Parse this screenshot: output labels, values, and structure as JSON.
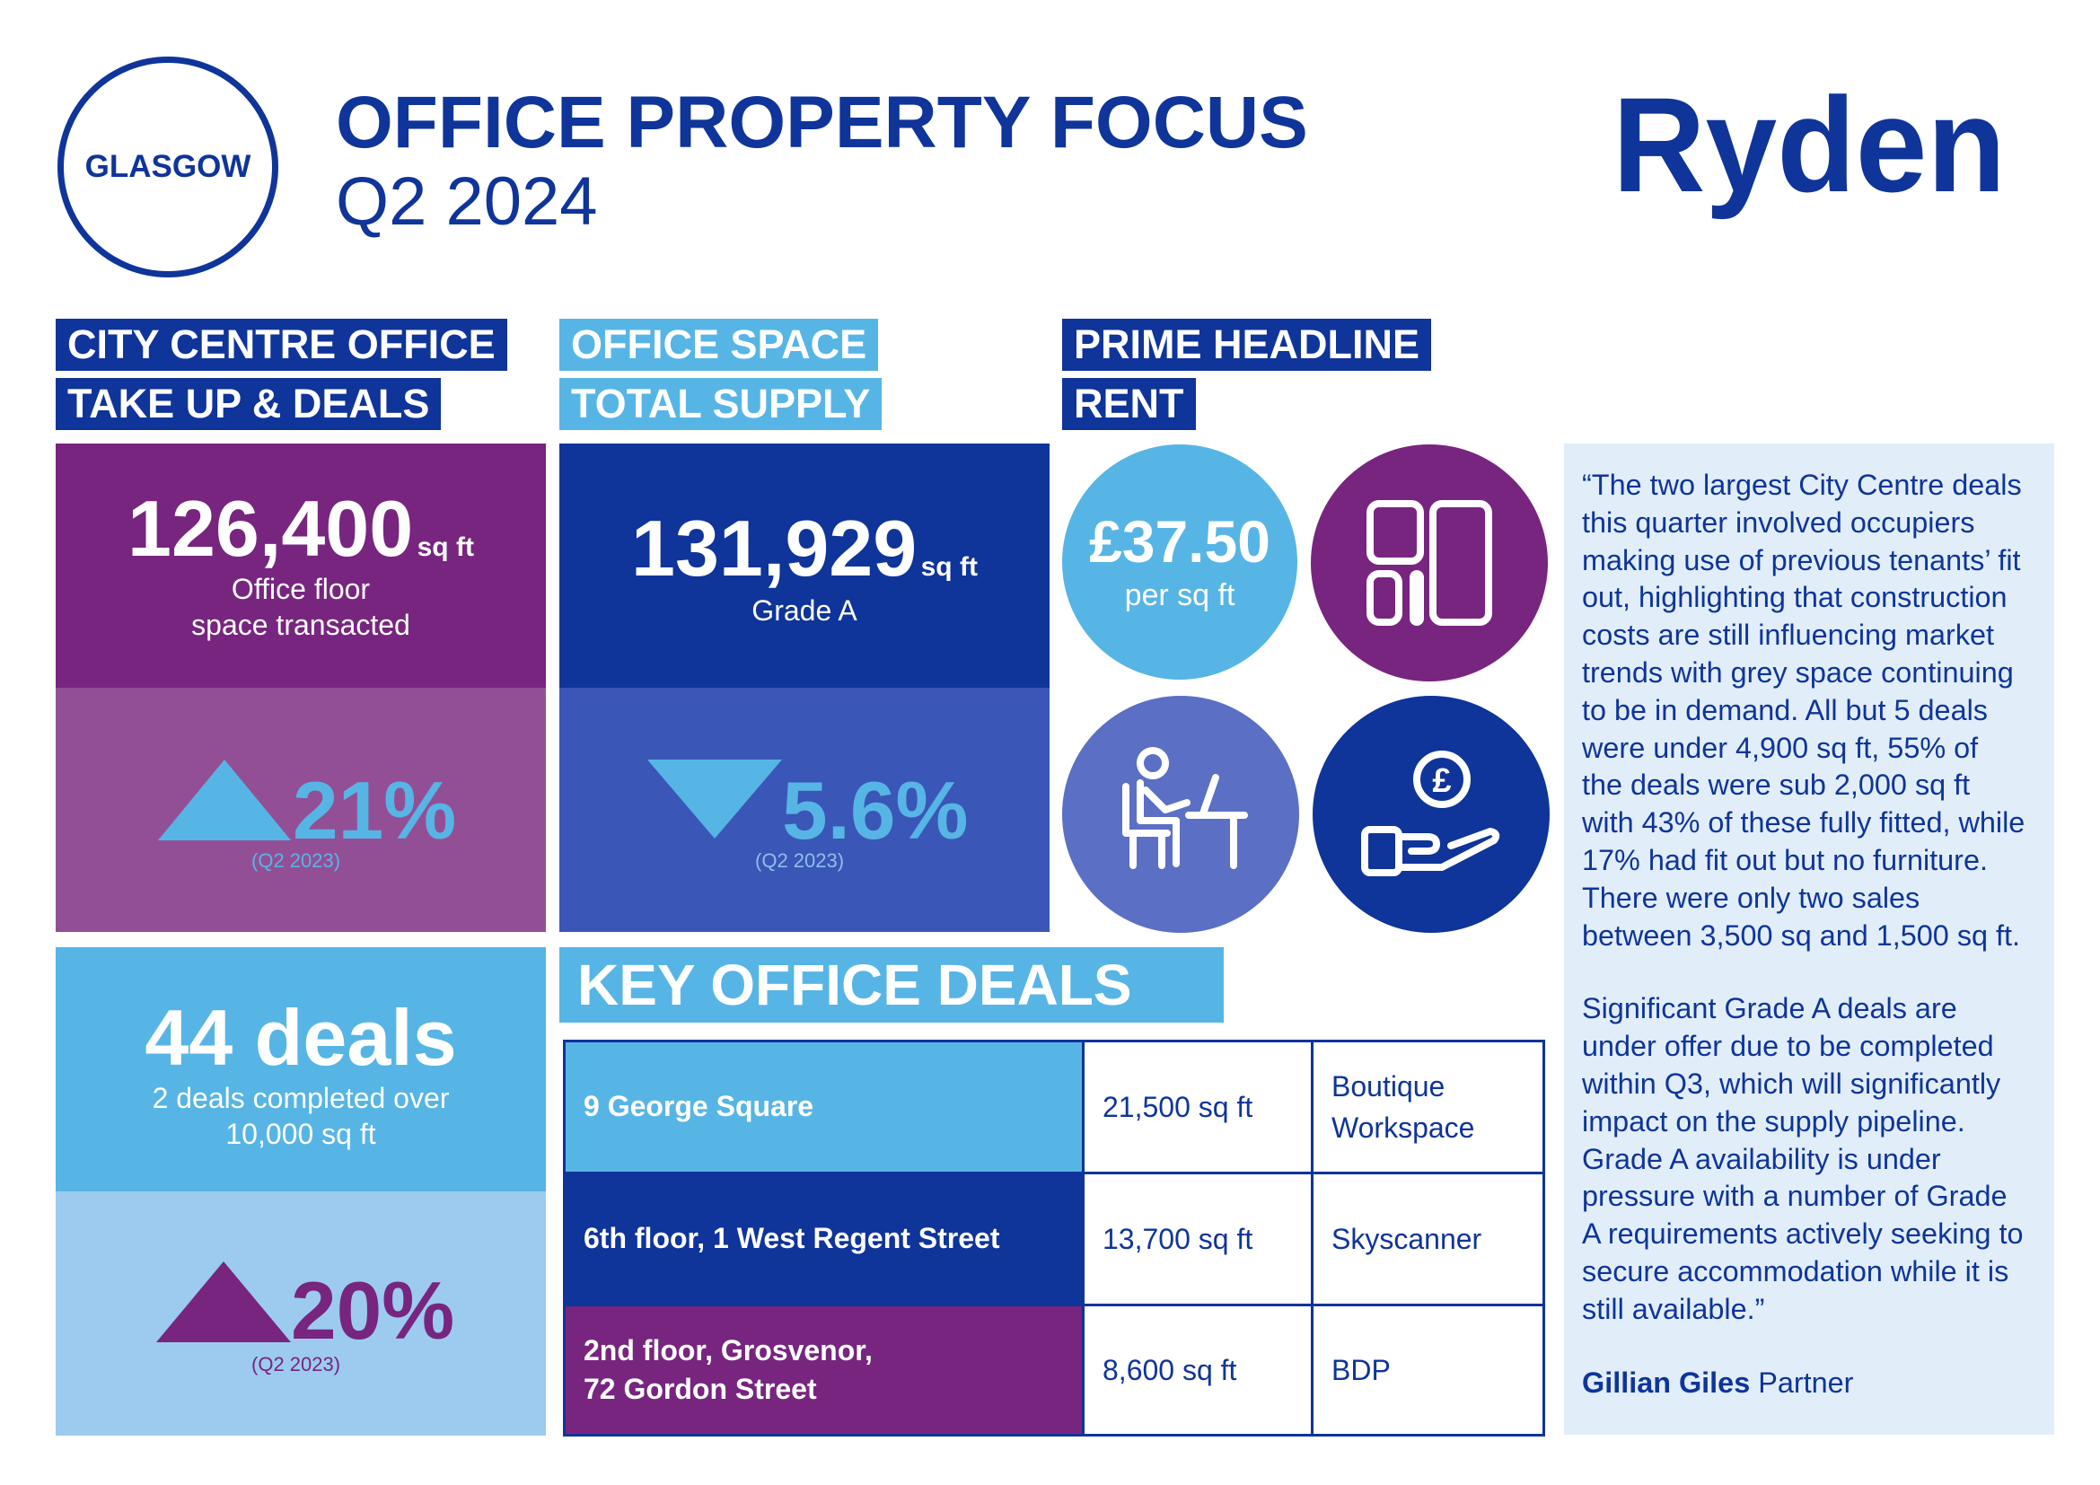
{
  "header": {
    "city": "GLASGOW",
    "title": "OFFICE PROPERTY FOCUS",
    "period": "Q2 2024",
    "brand": "Ryden"
  },
  "sections": {
    "takeup_line1": "CITY CENTRE OFFICE",
    "takeup_line2": "TAKE UP & DEALS",
    "supply_line1": "OFFICE SPACE",
    "supply_line2": "TOTAL SUPPLY",
    "rent_line1": "PRIME HEADLINE",
    "rent_line2": "RENT"
  },
  "takeup": {
    "value": "126,400",
    "unit": "sq ft",
    "caption": "Office floor\nspace transacted",
    "change_direction": "up",
    "change": "21%",
    "compare": "(Q2 2023)"
  },
  "supply": {
    "value": "131,929",
    "unit": "sq ft",
    "caption": "Grade A",
    "change_direction": "down",
    "change": "5.6%",
    "compare": "(Q2 2023)"
  },
  "deals": {
    "value": "44 deals",
    "caption": "2 deals completed over\n10,000 sq ft",
    "change_direction": "up",
    "change": "20%",
    "compare": "(Q2 2023)"
  },
  "rent": {
    "value": "£37.50",
    "unit": "per sq ft"
  },
  "icons": [
    "floor-plan-icon",
    "desk-worker-icon",
    "hand-pound-coin-icon"
  ],
  "key_deals": {
    "title": "KEY OFFICE DEALS",
    "rows": [
      {
        "address": "9 George Square",
        "size": "21,500 sq ft",
        "occupier": "Boutique\nWorkspace"
      },
      {
        "address": "6th floor, 1 West Regent Street",
        "size": "13,700 sq ft",
        "occupier": "Skyscanner"
      },
      {
        "address": "2nd floor, Grosvenor,\n72 Gordon Street",
        "size": "8,600 sq ft",
        "occupier": "BDP"
      }
    ]
  },
  "quote": {
    "paragraph1": "“The two largest City Centre deals\nthis quarter involved occupiers\nmaking use of previous tenants’ fit\nout, highlighting that construction\ncosts are still influencing market\ntrends with grey space continuing\nto be in demand. All but 5 deals\nwere under 4,900 sq ft, 55% of\nthe deals were sub 2,000 sq ft\nwith 43% of these fully fitted, while\n17% had fit out but no furniture.\nThere were only two sales\nbetween 3,500 sq and 1,500 sq ft.",
    "paragraph2": "Significant Grade A deals are\nunder offer due to be completed\nwithin Q3, which will significantly\nimpact on the supply pipeline.\nGrade A availability is under\npressure with a number of Grade\nA requirements actively seeking to\nsecure accommodation while it is\nstill available.”",
    "author": "Gillian Giles",
    "role": "Partner"
  },
  "colors": {
    "navy": "#0f349a",
    "purple": "#77257f",
    "purple_light": "#934f95",
    "sky": "#57b5e5",
    "sky_pale": "#9ccbef",
    "blue_mid": "#3a56b7",
    "periwinkle": "#5b6fc4",
    "quote_bg": "#e1eef9"
  }
}
